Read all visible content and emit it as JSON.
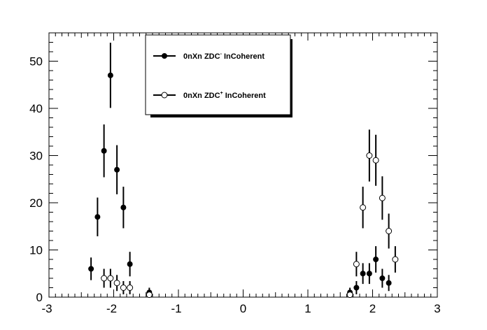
{
  "chart_data": {
    "type": "scatter",
    "xlim": [
      -3,
      3
    ],
    "ylim": [
      0,
      56
    ],
    "x_ticks": [
      -3,
      -2,
      -1,
      0,
      1,
      2,
      3
    ],
    "y_ticks": [
      0,
      10,
      20,
      30,
      40,
      50
    ],
    "x_tick_labels": [
      "-3",
      "-2",
      "-1",
      "0",
      "1",
      "2",
      "3"
    ],
    "y_tick_labels": [
      "0",
      "10",
      "20",
      "30",
      "40",
      "50"
    ],
    "grid": false,
    "legend_position": "top-center",
    "series": [
      {
        "legend_base": "0nXn ZDC",
        "legend_sup": "-",
        "legend_tail": " InCoherent",
        "marker": "filled-circle",
        "color": "#000000",
        "points": [
          {
            "x": -2.35,
            "y": 6,
            "err": 2.4
          },
          {
            "x": -2.25,
            "y": 17,
            "err": 4.1
          },
          {
            "x": -2.15,
            "y": 31,
            "err": 5.6
          },
          {
            "x": -2.05,
            "y": 47,
            "err": 6.9
          },
          {
            "x": -1.95,
            "y": 27,
            "err": 5.2
          },
          {
            "x": -1.85,
            "y": 19,
            "err": 4.4
          },
          {
            "x": -1.75,
            "y": 7,
            "err": 2.6
          },
          {
            "x": -1.45,
            "y": 1,
            "err": 1.0
          },
          {
            "x": 1.65,
            "y": 1,
            "err": 1.0
          },
          {
            "x": 1.75,
            "y": 2,
            "err": 1.4
          },
          {
            "x": 1.85,
            "y": 5,
            "err": 2.2
          },
          {
            "x": 1.95,
            "y": 5,
            "err": 2.2
          },
          {
            "x": 2.05,
            "y": 8,
            "err": 2.8
          },
          {
            "x": 2.15,
            "y": 4,
            "err": 2.0
          },
          {
            "x": 2.25,
            "y": 3,
            "err": 1.7
          }
        ]
      },
      {
        "legend_base": "0nXn ZDC",
        "legend_sup": "+",
        "legend_tail": " InCoherent",
        "marker": "open-circle",
        "color": "#000000",
        "points": [
          {
            "x": -2.15,
            "y": 4,
            "err": 2.0
          },
          {
            "x": -2.05,
            "y": 4,
            "err": 2.0
          },
          {
            "x": -1.95,
            "y": 3,
            "err": 1.7
          },
          {
            "x": -1.85,
            "y": 2,
            "err": 1.4
          },
          {
            "x": -1.75,
            "y": 2,
            "err": 1.4
          },
          {
            "x": -1.45,
            "y": 0.5,
            "err": 0.7
          },
          {
            "x": 1.65,
            "y": 0.5,
            "err": 0.7
          },
          {
            "x": 1.75,
            "y": 7,
            "err": 2.6
          },
          {
            "x": 1.85,
            "y": 19,
            "err": 4.4
          },
          {
            "x": 1.95,
            "y": 30,
            "err": 5.5
          },
          {
            "x": 2.05,
            "y": 29,
            "err": 5.4
          },
          {
            "x": 2.15,
            "y": 21,
            "err": 4.6
          },
          {
            "x": 2.25,
            "y": 14,
            "err": 3.7
          },
          {
            "x": 2.35,
            "y": 8,
            "err": 2.8
          }
        ]
      }
    ]
  }
}
